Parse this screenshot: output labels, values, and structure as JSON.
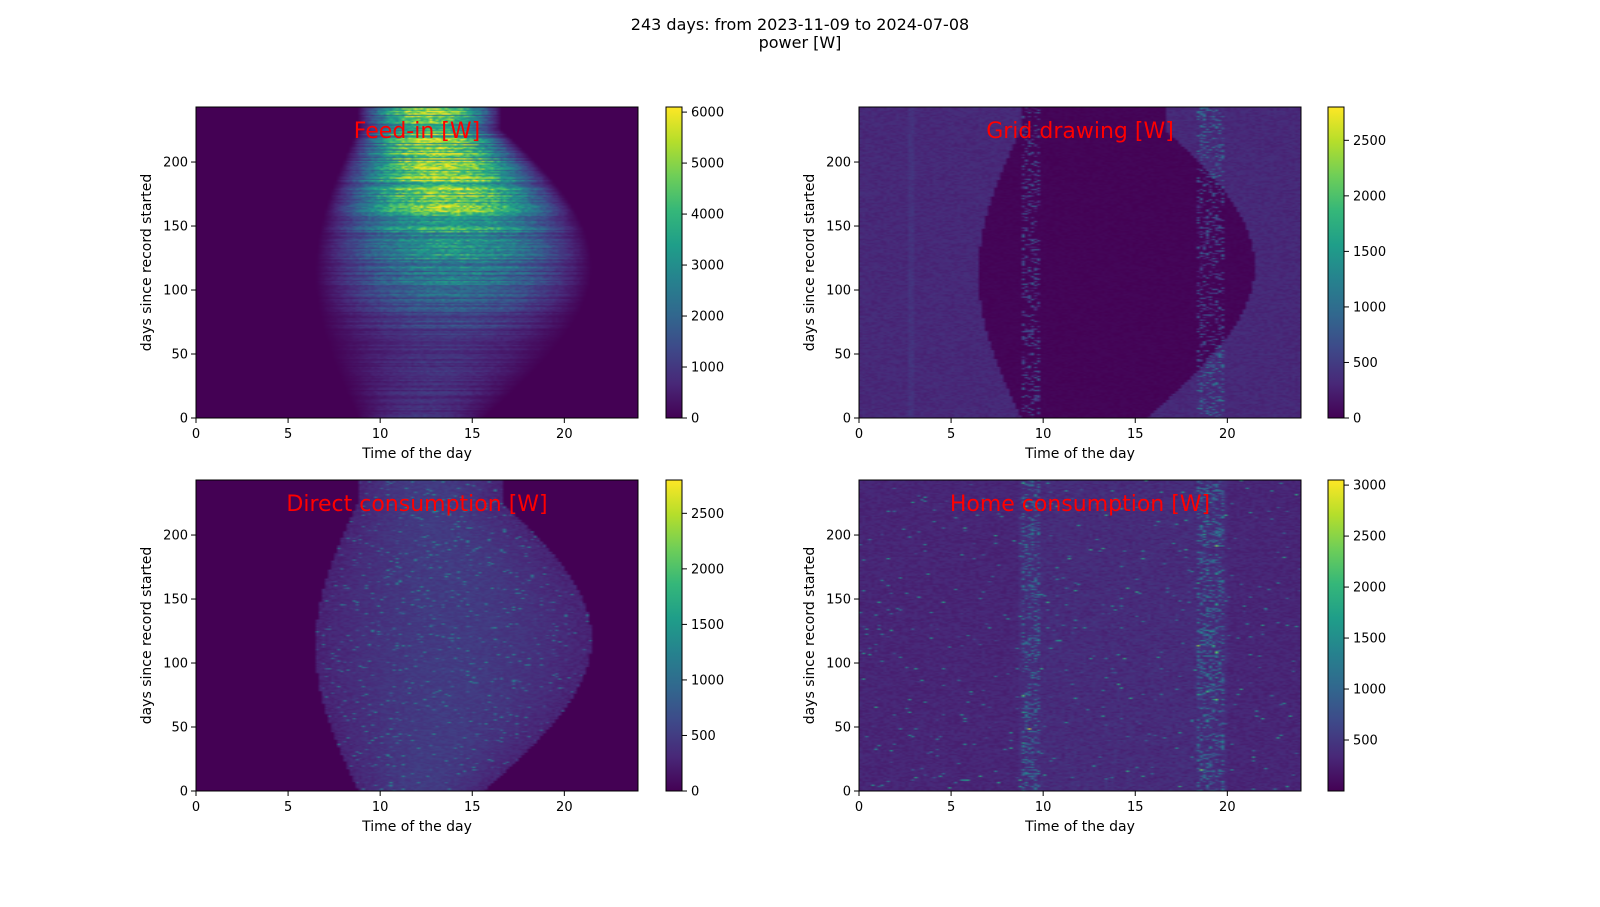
{
  "figure": {
    "title_line1": "243 days: from 2023-11-09 to 2024-07-08",
    "title_line2": "power [W]"
  },
  "colormap": {
    "name": "viridis",
    "stops": [
      "#440154",
      "#482878",
      "#3e4989",
      "#31688e",
      "#26828e",
      "#1f9e89",
      "#35b779",
      "#6ece58",
      "#b5de2b",
      "#fde725"
    ]
  },
  "chart_data": [
    {
      "type": "heatmap",
      "title": "Feed-in [W]",
      "xlabel": "Time of the day",
      "ylabel": "days since record started",
      "xlim": [
        0,
        24
      ],
      "ylim": [
        0,
        243
      ],
      "xticks": [
        0,
        5,
        10,
        15,
        20
      ],
      "yticks": [
        0,
        50,
        100,
        150,
        200
      ],
      "colorbar": {
        "min": 0,
        "max": 6100,
        "ticks": [
          0,
          1000,
          2000,
          3000,
          4000,
          5000,
          6000
        ]
      },
      "pattern": "feed-in"
    },
    {
      "type": "heatmap",
      "title": "Grid drawing [W]",
      "xlabel": "Time of the day",
      "ylabel": "days since record started",
      "xlim": [
        0,
        24
      ],
      "ylim": [
        0,
        243
      ],
      "xticks": [
        0,
        5,
        10,
        15,
        20
      ],
      "yticks": [
        0,
        50,
        100,
        150,
        200
      ],
      "colorbar": {
        "min": 0,
        "max": 2800,
        "ticks": [
          0,
          500,
          1000,
          1500,
          2000,
          2500
        ]
      },
      "pattern": "grid"
    },
    {
      "type": "heatmap",
      "title": "Direct consumption [W]",
      "xlabel": "Time of the day",
      "ylabel": "days since record started",
      "xlim": [
        0,
        24
      ],
      "ylim": [
        0,
        243
      ],
      "xticks": [
        0,
        5,
        10,
        15,
        20
      ],
      "yticks": [
        0,
        50,
        100,
        150,
        200
      ],
      "colorbar": {
        "min": 0,
        "max": 2800,
        "ticks": [
          0,
          500,
          1000,
          1500,
          2000,
          2500
        ]
      },
      "pattern": "direct"
    },
    {
      "type": "heatmap",
      "title": "Home consumption [W]",
      "xlabel": "Time of the day",
      "ylabel": "days since record started",
      "xlim": [
        0,
        24
      ],
      "ylim": [
        0,
        243
      ],
      "xticks": [
        0,
        5,
        10,
        15,
        20
      ],
      "yticks": [
        0,
        50,
        100,
        150,
        200
      ],
      "colorbar": {
        "min": 0,
        "max": 3050,
        "ticks": [
          500,
          1000,
          1500,
          2000,
          2500,
          3000
        ]
      },
      "pattern": "home"
    }
  ]
}
